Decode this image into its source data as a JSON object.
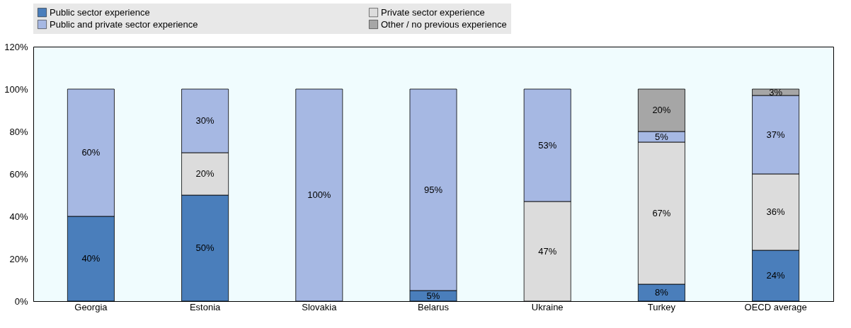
{
  "chart_data": {
    "type": "bar",
    "stacked": true,
    "categories": [
      "Georgia",
      "Estonia",
      "Slovakia",
      "Belarus",
      "Ukraine",
      "Turkey",
      "OECD average"
    ],
    "series": [
      {
        "name": "Public sector experience",
        "color": "#4a7ebb",
        "values": [
          40,
          50,
          null,
          5,
          null,
          8,
          24
        ],
        "value_labels": [
          "40%",
          "50%",
          null,
          "5%",
          null,
          "8%",
          "24%"
        ]
      },
      {
        "name": "Private sector experience",
        "color": "#dcdcdc",
        "values": [
          null,
          20,
          null,
          null,
          47,
          67,
          36
        ],
        "value_labels": [
          null,
          "20%",
          null,
          null,
          "47%",
          "67%",
          "36%"
        ]
      },
      {
        "name": "Public and private sector experience",
        "color": "#a6b8e3",
        "values": [
          60,
          30,
          100,
          95,
          53,
          5,
          37
        ],
        "value_labels": [
          "60%",
          "30%",
          "100%",
          "95%",
          "53%",
          "5%",
          "37%"
        ]
      },
      {
        "name": "Other / no previous experience",
        "color": "#a6a6a6",
        "values": [
          null,
          null,
          null,
          null,
          null,
          20,
          3
        ],
        "value_labels": [
          null,
          null,
          null,
          null,
          null,
          "20%",
          "3%"
        ]
      }
    ],
    "ylim": [
      0,
      120
    ],
    "yticks": [
      {
        "value": 0,
        "label": "0%"
      },
      {
        "value": 20,
        "label": "20%"
      },
      {
        "value": 40,
        "label": "40%"
      },
      {
        "value": 60,
        "label": "60%"
      },
      {
        "value": 80,
        "label": "80%"
      },
      {
        "value": 100,
        "label": "100%"
      },
      {
        "value": 120,
        "label": "120%"
      }
    ],
    "grid": false,
    "legend": "top"
  }
}
